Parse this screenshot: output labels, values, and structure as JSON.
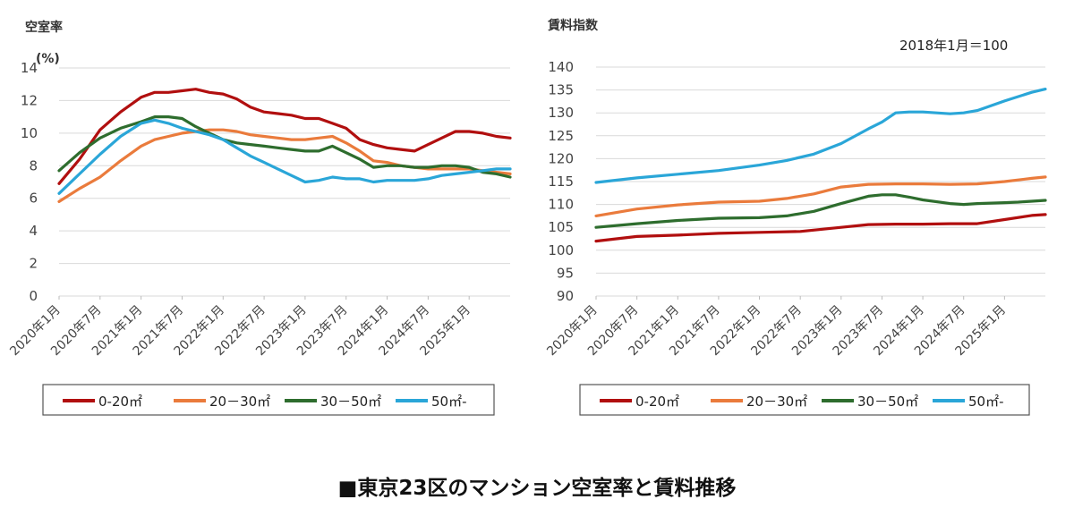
{
  "caption": "■東京23区のマンション空室率と賃料推移",
  "colors": {
    "red": "#b10f0f",
    "orange": "#ea7b3c",
    "green": "#2e6d2e",
    "blue": "#2aa6d8",
    "grid": "#d9d9d9",
    "text": "#444444"
  },
  "chart_data": [
    {
      "type": "line",
      "title": "空室率",
      "ylabel": "(%)",
      "xlabel": "",
      "ylim": [
        0,
        14
      ],
      "yticks": [
        0,
        2,
        4,
        6,
        8,
        10,
        12,
        14
      ],
      "grid": true,
      "legend_position": "bottom",
      "xtick_labels": [
        "2020年1月",
        "2020年7月",
        "2021年1月",
        "2021年7月",
        "2022年1月",
        "2022年7月",
        "2023年1月",
        "2023年7月",
        "2024年1月",
        "2024年7月",
        "2025年1月"
      ],
      "xtick_index": [
        0,
        6,
        12,
        18,
        24,
        30,
        36,
        42,
        48,
        54,
        60
      ],
      "n_points": 67,
      "series": [
        {
          "name": "0-20㎡",
          "color": "red",
          "x": [
            0,
            3,
            6,
            9,
            12,
            14,
            16,
            18,
            20,
            22,
            24,
            26,
            28,
            30,
            32,
            34,
            36,
            38,
            40,
            42,
            44,
            46,
            48,
            50,
            52,
            54,
            56,
            58,
            60,
            62,
            64,
            66
          ],
          "values": [
            6.9,
            8.4,
            10.2,
            11.3,
            12.2,
            12.5,
            12.5,
            12.6,
            12.7,
            12.5,
            12.4,
            12.1,
            11.6,
            11.3,
            11.2,
            11.1,
            10.9,
            10.9,
            10.6,
            10.3,
            9.6,
            9.3,
            9.1,
            9.0,
            8.9,
            9.3,
            9.7,
            10.1,
            10.1,
            10.0,
            9.8,
            9.7
          ]
        },
        {
          "name": "20－30㎡",
          "color": "orange",
          "x": [
            0,
            3,
            6,
            9,
            12,
            14,
            16,
            18,
            20,
            22,
            24,
            26,
            28,
            30,
            32,
            34,
            36,
            38,
            40,
            42,
            44,
            46,
            48,
            50,
            52,
            54,
            56,
            58,
            60,
            62,
            64,
            66
          ],
          "values": [
            5.8,
            6.6,
            7.3,
            8.3,
            9.2,
            9.6,
            9.8,
            10.0,
            10.1,
            10.2,
            10.2,
            10.1,
            9.9,
            9.8,
            9.7,
            9.6,
            9.6,
            9.7,
            9.8,
            9.4,
            8.9,
            8.3,
            8.2,
            8.0,
            7.9,
            7.8,
            7.8,
            7.8,
            7.8,
            7.7,
            7.6,
            7.5
          ]
        },
        {
          "name": "30－50㎡",
          "color": "green",
          "x": [
            0,
            3,
            6,
            9,
            12,
            14,
            16,
            18,
            20,
            22,
            24,
            26,
            28,
            30,
            32,
            34,
            36,
            38,
            40,
            42,
            44,
            46,
            48,
            50,
            52,
            54,
            56,
            58,
            60,
            62,
            64,
            66
          ],
          "values": [
            7.7,
            8.8,
            9.7,
            10.3,
            10.7,
            11.0,
            11.0,
            10.9,
            10.4,
            10.0,
            9.6,
            9.4,
            9.3,
            9.2,
            9.1,
            9.0,
            8.9,
            8.9,
            9.2,
            8.8,
            8.4,
            7.9,
            8.0,
            8.0,
            7.9,
            7.9,
            8.0,
            8.0,
            7.9,
            7.6,
            7.5,
            7.3
          ]
        },
        {
          "name": "50㎡-",
          "color": "blue",
          "x": [
            0,
            3,
            6,
            9,
            12,
            14,
            16,
            18,
            20,
            22,
            24,
            26,
            28,
            30,
            32,
            34,
            36,
            38,
            40,
            42,
            44,
            46,
            48,
            50,
            52,
            54,
            56,
            58,
            60,
            62,
            64,
            66
          ],
          "values": [
            6.3,
            7.5,
            8.7,
            9.8,
            10.6,
            10.8,
            10.6,
            10.3,
            10.1,
            9.9,
            9.6,
            9.1,
            8.6,
            8.2,
            7.8,
            7.4,
            7.0,
            7.1,
            7.3,
            7.2,
            7.2,
            7.0,
            7.1,
            7.1,
            7.1,
            7.2,
            7.4,
            7.5,
            7.6,
            7.7,
            7.8,
            7.8
          ]
        }
      ]
    },
    {
      "type": "line",
      "title": "賃料指数",
      "annotation": "2018年1月＝100",
      "ylabel": "",
      "xlabel": "",
      "ylim": [
        90,
        140
      ],
      "yticks": [
        90,
        95,
        100,
        105,
        110,
        115,
        120,
        125,
        130,
        135,
        140
      ],
      "grid": true,
      "legend_position": "bottom",
      "xtick_labels": [
        "2020年1月",
        "2020年7月",
        "2021年1月",
        "2021年7月",
        "2022年1月",
        "2022年7月",
        "2023年1月",
        "2023年7月",
        "2024年1月",
        "2024年7月",
        "2025年1月"
      ],
      "xtick_index": [
        0,
        6,
        12,
        18,
        24,
        30,
        36,
        42,
        48,
        54,
        60
      ],
      "n_points": 67,
      "series": [
        {
          "name": "0-20㎡",
          "color": "red",
          "x": [
            0,
            6,
            12,
            18,
            24,
            30,
            36,
            40,
            44,
            48,
            52,
            56,
            60,
            64,
            66
          ],
          "values": [
            102.0,
            103.0,
            103.3,
            103.7,
            103.9,
            104.1,
            105.0,
            105.6,
            105.7,
            105.7,
            105.8,
            105.8,
            106.7,
            107.6,
            107.8
          ]
        },
        {
          "name": "20－30㎡",
          "color": "orange",
          "x": [
            0,
            6,
            12,
            18,
            24,
            28,
            32,
            36,
            40,
            44,
            48,
            52,
            56,
            60,
            64,
            66
          ],
          "values": [
            107.5,
            109.0,
            109.9,
            110.5,
            110.7,
            111.3,
            112.3,
            113.8,
            114.4,
            114.5,
            114.5,
            114.4,
            114.5,
            115.0,
            115.7,
            116.0
          ]
        },
        {
          "name": "30－50㎡",
          "color": "green",
          "x": [
            0,
            6,
            12,
            18,
            24,
            28,
            32,
            36,
            40,
            42,
            44,
            46,
            48,
            52,
            54,
            56,
            60,
            62,
            64,
            66
          ],
          "values": [
            105.0,
            105.8,
            106.5,
            107.0,
            107.1,
            107.5,
            108.5,
            110.2,
            111.8,
            112.1,
            112.1,
            111.6,
            111.0,
            110.2,
            110.0,
            110.2,
            110.4,
            110.5,
            110.7,
            110.9
          ]
        },
        {
          "name": "50㎡-",
          "color": "blue",
          "x": [
            0,
            6,
            12,
            18,
            24,
            28,
            32,
            36,
            40,
            42,
            44,
            46,
            48,
            50,
            52,
            54,
            56,
            60,
            64,
            66
          ],
          "values": [
            114.8,
            115.8,
            116.6,
            117.4,
            118.6,
            119.6,
            121.0,
            123.3,
            126.5,
            128.0,
            130.0,
            130.2,
            130.2,
            130.0,
            129.8,
            130.0,
            130.5,
            132.6,
            134.5,
            135.2
          ]
        }
      ]
    }
  ]
}
